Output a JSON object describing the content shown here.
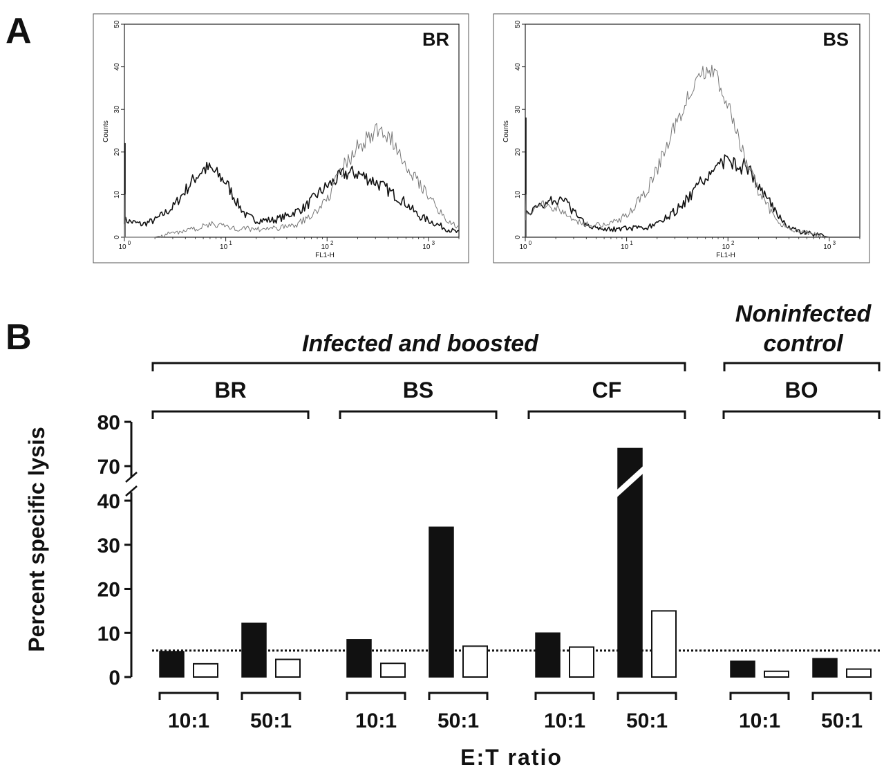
{
  "panel_a": {
    "letter": "A",
    "charts": [
      {
        "label": "BR",
        "ylabel": "Counts",
        "xlabel": "FL1-H",
        "yticks": [
          "0",
          "10",
          "20",
          "30",
          "40",
          "50"
        ],
        "xticks": [
          {
            "base": "10",
            "exp": "0"
          },
          {
            "base": "10",
            "exp": "1"
          },
          {
            "base": "10",
            "exp": "2"
          },
          {
            "base": "10",
            "exp": "3"
          }
        ]
      },
      {
        "label": "BS",
        "ylabel": "Counts",
        "xlabel": "FL1-H",
        "yticks": [
          "0",
          "10",
          "20",
          "30",
          "40",
          "50"
        ],
        "xticks": [
          {
            "base": "10",
            "exp": "0"
          },
          {
            "base": "10",
            "exp": "1"
          },
          {
            "base": "10",
            "exp": "2"
          },
          {
            "base": "10",
            "exp": "3"
          }
        ]
      }
    ]
  },
  "panel_b": {
    "letter": "B",
    "header_infected": "Infected   and   boosted",
    "header_noninfected_1": "Noninfected",
    "header_noninfected_2": "control",
    "ylabel": "Percent specific lysis",
    "xlabel": "E:T     ratio",
    "yticks_lower": [
      "0",
      "10",
      "20",
      "30",
      "40"
    ],
    "yticks_upper": [
      "70",
      "80"
    ]
  },
  "chart_data": [
    {
      "type": "line",
      "panel": "A",
      "label": "BR",
      "xlabel": "FL1-H",
      "ylabel": "Counts",
      "x_scale": "log",
      "xlim": [
        1,
        2000
      ],
      "ylim": [
        0,
        50
      ],
      "series": [
        {
          "color": "#111111",
          "x": [
            1,
            1.5,
            2,
            3,
            4,
            5,
            6,
            7,
            8,
            10,
            13,
            16,
            20,
            30,
            40,
            60,
            80,
            100,
            150,
            200,
            300,
            400,
            600,
            800,
            1000,
            1500,
            2000
          ],
          "y": [
            4,
            3,
            4,
            7,
            11,
            14,
            16,
            16,
            15,
            13,
            8,
            5,
            4,
            4,
            5,
            7,
            10,
            12,
            15,
            15,
            13,
            11,
            8,
            5,
            4,
            2,
            1
          ]
        },
        {
          "color": "#777777",
          "x": [
            1,
            2,
            3,
            5,
            7,
            9,
            12,
            20,
            30,
            50,
            70,
            100,
            150,
            200,
            300,
            400,
            500,
            700,
            1000,
            1500,
            2000
          ],
          "y": [
            0,
            0,
            1,
            2,
            3,
            3,
            2,
            2,
            2,
            3,
            5,
            9,
            17,
            21,
            25,
            24,
            21,
            15,
            10,
            4,
            2
          ]
        }
      ]
    },
    {
      "type": "line",
      "panel": "A",
      "label": "BS",
      "xlabel": "FL1-H",
      "ylabel": "Counts",
      "x_scale": "log",
      "xlim": [
        1,
        2000
      ],
      "ylim": [
        0,
        50
      ],
      "series": [
        {
          "color": "#111111",
          "x": [
            1,
            1.5,
            2,
            2.5,
            3,
            4,
            6,
            10,
            15,
            20,
            30,
            40,
            60,
            80,
            100,
            130,
            160,
            200,
            300,
            400,
            600,
            1000
          ],
          "y": [
            5,
            8,
            9,
            8,
            6,
            3,
            2,
            2,
            2,
            3,
            6,
            9,
            14,
            17,
            18,
            17,
            16,
            12,
            6,
            2,
            1,
            0
          ]
        },
        {
          "color": "#777777",
          "x": [
            1,
            1.5,
            2,
            3,
            4,
            6,
            8,
            10,
            15,
            20,
            30,
            40,
            50,
            60,
            70,
            80,
            100,
            130,
            160,
            200,
            300,
            400,
            600,
            1000
          ],
          "y": [
            5,
            8,
            7,
            4,
            3,
            3,
            4,
            5,
            10,
            16,
            26,
            33,
            37,
            39,
            39,
            37,
            31,
            22,
            16,
            11,
            4,
            2,
            1,
            0
          ]
        }
      ]
    },
    {
      "type": "bar",
      "panel": "B",
      "ylabel": "Percent specific lysis",
      "xlabel": "E:T     ratio",
      "ylim": [
        0,
        80
      ],
      "axis_break": [
        40,
        70
      ],
      "reference_line": 6,
      "groups": [
        {
          "label": "BR",
          "header": "Infected   and   boosted",
          "ratios": [
            {
              "label": "10:1",
              "filled": 5.8,
              "open": 3.0
            },
            {
              "label": "50:1",
              "filled": 12.2,
              "open": 4.0
            }
          ]
        },
        {
          "label": "BS",
          "header": "Infected   and   boosted",
          "ratios": [
            {
              "label": "10:1",
              "filled": 8.5,
              "open": 3.1
            },
            {
              "label": "50:1",
              "filled": 34,
              "open": 7.0
            }
          ]
        },
        {
          "label": "CF",
          "header": "Infected   and   boosted",
          "ratios": [
            {
              "label": "10:1",
              "filled": 10,
              "open": 6.8
            },
            {
              "label": "50:1",
              "filled": 74,
              "open": 15.0
            }
          ]
        },
        {
          "label": "BO",
          "header": "Noninfected control",
          "ratios": [
            {
              "label": "10:1",
              "filled": 3.6,
              "open": 1.3
            },
            {
              "label": "50:1",
              "filled": 4.2,
              "open": 1.8
            }
          ]
        }
      ]
    }
  ]
}
